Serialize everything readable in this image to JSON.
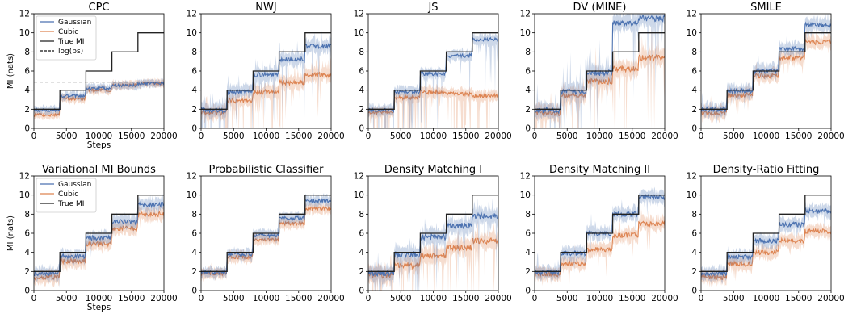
{
  "shared": {
    "ylabel": "MI (nats)",
    "xlabel": "Steps",
    "x_ticks": [
      0,
      5000,
      10000,
      15000,
      20000
    ],
    "y_ticks": [
      0,
      2,
      4,
      6,
      8,
      10,
      12
    ],
    "xlim": [
      0,
      20000
    ],
    "ylim": [
      0,
      12
    ]
  },
  "colors": {
    "gaussian": "#4c72b0",
    "cubic": "#dd8452",
    "true_mi": "#222222",
    "logbs": "#111111"
  },
  "legends": [
    {
      "panel": 0,
      "entries": [
        "Gaussian",
        "Cubic",
        "True MI",
        "log(bs)"
      ]
    },
    {
      "panel": 5,
      "entries": [
        "Gaussian",
        "Cubic",
        "True MI"
      ]
    }
  ],
  "chart_data": [
    {
      "type": "line",
      "title": "CPC",
      "xlim": [
        0,
        20000
      ],
      "ylim": [
        0,
        12
      ],
      "x": [
        2000,
        6000,
        10000,
        14000,
        18000
      ],
      "series": [
        {
          "name": "True MI",
          "values": [
            2,
            4,
            6,
            8,
            10
          ]
        },
        {
          "name": "Gaussian",
          "values": [
            1.9,
            3.4,
            4.2,
            4.5,
            4.7
          ]
        },
        {
          "name": "Cubic",
          "values": [
            1.4,
            3.1,
            4.0,
            4.5,
            4.7
          ]
        },
        {
          "name": "log(bs)",
          "values": [
            4.85,
            4.85,
            4.85,
            4.85,
            4.85
          ]
        }
      ]
    },
    {
      "type": "line",
      "title": "NWJ",
      "xlim": [
        0,
        20000
      ],
      "ylim": [
        0,
        12
      ],
      "x": [
        2000,
        6000,
        10000,
        14000,
        18000
      ],
      "series": [
        {
          "name": "True MI",
          "values": [
            2,
            4,
            6,
            8,
            10
          ]
        },
        {
          "name": "Gaussian",
          "values": [
            1.9,
            3.8,
            5.6,
            7.2,
            8.6
          ]
        },
        {
          "name": "Cubic",
          "values": [
            1.6,
            2.9,
            3.8,
            4.8,
            5.6
          ]
        }
      ]
    },
    {
      "type": "line",
      "title": "JS",
      "xlim": [
        0,
        20000
      ],
      "ylim": [
        0,
        12
      ],
      "x": [
        2000,
        6000,
        10000,
        14000,
        18000
      ],
      "series": [
        {
          "name": "True MI",
          "values": [
            2,
            4,
            6,
            8,
            10
          ]
        },
        {
          "name": "Gaussian",
          "values": [
            1.9,
            3.8,
            5.7,
            7.6,
            9.3
          ]
        },
        {
          "name": "Cubic",
          "values": [
            1.7,
            3.2,
            3.8,
            3.6,
            3.4
          ]
        }
      ]
    },
    {
      "type": "line",
      "title": "DV (MINE)",
      "xlim": [
        0,
        20000
      ],
      "ylim": [
        0,
        12
      ],
      "x": [
        2000,
        6000,
        10000,
        14000,
        18000
      ],
      "series": [
        {
          "name": "True MI",
          "values": [
            2,
            4,
            6,
            8,
            10
          ]
        },
        {
          "name": "Gaussian",
          "values": [
            1.9,
            3.8,
            5.8,
            11.0,
            11.5
          ]
        },
        {
          "name": "Cubic",
          "values": [
            1.6,
            3.4,
            4.9,
            6.2,
            7.4
          ]
        }
      ]
    },
    {
      "type": "line",
      "title": "SMILE",
      "xlim": [
        0,
        20000
      ],
      "ylim": [
        0,
        12
      ],
      "x": [
        2000,
        6000,
        10000,
        14000,
        18000
      ],
      "series": [
        {
          "name": "True MI",
          "values": [
            2,
            4,
            6,
            8,
            10
          ]
        },
        {
          "name": "Gaussian",
          "values": [
            2.0,
            3.9,
            6.0,
            8.3,
            10.8
          ]
        },
        {
          "name": "Cubic",
          "values": [
            1.6,
            3.5,
            5.5,
            7.4,
            9.0
          ]
        }
      ]
    },
    {
      "type": "line",
      "title": "Variational MI Bounds",
      "xlim": [
        0,
        20000
      ],
      "ylim": [
        0,
        12
      ],
      "x": [
        2000,
        6000,
        10000,
        14000,
        18000
      ],
      "series": [
        {
          "name": "True MI",
          "values": [
            2,
            4,
            6,
            8,
            10
          ]
        },
        {
          "name": "Gaussian",
          "values": [
            1.8,
            3.6,
            5.5,
            7.2,
            9.0
          ]
        },
        {
          "name": "Cubic",
          "values": [
            1.4,
            3.1,
            4.9,
            6.5,
            8.0
          ]
        }
      ]
    },
    {
      "type": "line",
      "title": "Probabilistic Classifier",
      "xlim": [
        0,
        20000
      ],
      "ylim": [
        0,
        12
      ],
      "x": [
        2000,
        6000,
        10000,
        14000,
        18000
      ],
      "series": [
        {
          "name": "True MI",
          "values": [
            2,
            4,
            6,
            8,
            10
          ]
        },
        {
          "name": "Gaussian",
          "values": [
            1.9,
            3.8,
            5.8,
            7.6,
            9.4
          ]
        },
        {
          "name": "Cubic",
          "values": [
            1.8,
            3.5,
            5.3,
            7.0,
            8.6
          ]
        }
      ]
    },
    {
      "type": "line",
      "title": "Density Matching I",
      "xlim": [
        0,
        20000
      ],
      "ylim": [
        0,
        12
      ],
      "x": [
        2000,
        6000,
        10000,
        14000,
        18000
      ],
      "series": [
        {
          "name": "True MI",
          "values": [
            2,
            4,
            6,
            8,
            10
          ]
        },
        {
          "name": "Gaussian",
          "values": [
            1.8,
            3.8,
            5.6,
            6.8,
            7.8
          ]
        },
        {
          "name": "Cubic",
          "values": [
            1.6,
            2.6,
            3.6,
            4.5,
            5.2
          ]
        }
      ]
    },
    {
      "type": "line",
      "title": "Density Matching II",
      "xlim": [
        0,
        20000
      ],
      "ylim": [
        0,
        12
      ],
      "x": [
        2000,
        6000,
        10000,
        14000,
        18000
      ],
      "series": [
        {
          "name": "True MI",
          "values": [
            2,
            4,
            6,
            8,
            10
          ]
        },
        {
          "name": "Gaussian",
          "values": [
            1.9,
            3.9,
            6.0,
            8.0,
            9.8
          ]
        },
        {
          "name": "Cubic",
          "values": [
            1.7,
            2.8,
            4.3,
            5.8,
            7.0
          ]
        }
      ]
    },
    {
      "type": "line",
      "title": "Density-Ratio Fitting",
      "xlim": [
        0,
        20000
      ],
      "ylim": [
        0,
        12
      ],
      "x": [
        2000,
        6000,
        10000,
        14000,
        18000
      ],
      "series": [
        {
          "name": "True MI",
          "values": [
            2,
            4,
            6,
            8,
            10
          ]
        },
        {
          "name": "Gaussian",
          "values": [
            1.8,
            3.5,
            5.2,
            6.9,
            8.3
          ]
        },
        {
          "name": "Cubic",
          "values": [
            1.4,
            2.8,
            4.0,
            5.2,
            6.2
          ]
        }
      ]
    }
  ]
}
